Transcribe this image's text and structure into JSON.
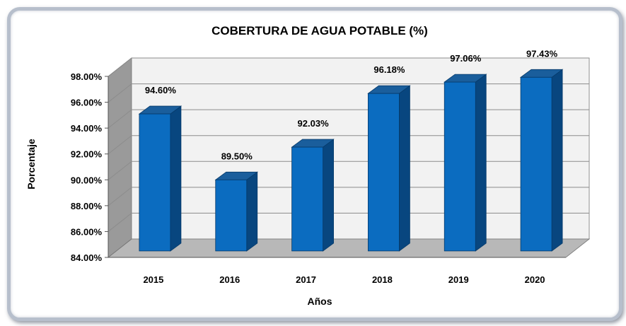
{
  "chart_data": {
    "type": "bar",
    "title": "COBERTURA DE AGUA POTABLE (%)",
    "xlabel": "Años",
    "ylabel": "Porcentaje",
    "categories": [
      "2015",
      "2016",
      "2017",
      "2018",
      "2019",
      "2020"
    ],
    "values": [
      94.6,
      89.5,
      92.03,
      96.18,
      97.06,
      97.43
    ],
    "data_labels": [
      "94.60%",
      "89.50%",
      "92.03%",
      "96.18%",
      "97.06%",
      "97.43%"
    ],
    "y_ticks": [
      "84.00%",
      "86.00%",
      "88.00%",
      "90.00%",
      "92.00%",
      "94.00%",
      "96.00%",
      "98.00%"
    ],
    "ylim": [
      84,
      98
    ],
    "grid": true,
    "legend": "none",
    "colors": {
      "bar_front": "#0b6cc0",
      "bar_side": "#08467f",
      "bar_top": "#1a5e9c",
      "wall": "#f2f2f2",
      "side_wall": "#9a9a9a",
      "floor": "#b8b8b8",
      "grid": "#8c8c8c"
    }
  }
}
